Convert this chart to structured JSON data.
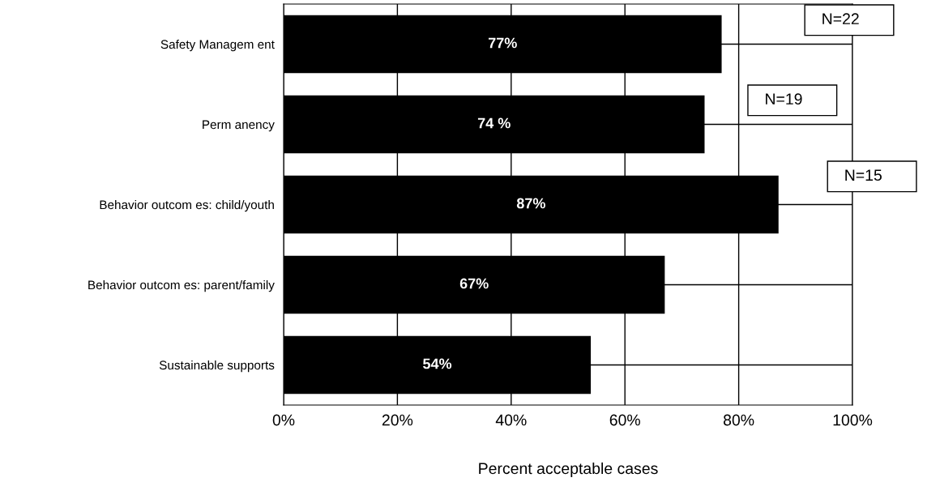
{
  "chart_data": {
    "type": "bar",
    "orientation": "horizontal",
    "categories": [
      "Safety Managem ent",
      "Perm anency",
      "Behavior outcom es: child/youth",
      "Behavior outcom es: parent/family",
      "Sustainable supports"
    ],
    "values": [
      77,
      74,
      87,
      67,
      54
    ],
    "color": "#000000",
    "value_labels": [
      "77%",
      "74 %",
      "87%",
      "67%",
      "54%"
    ],
    "xlim": [
      0,
      100
    ],
    "xticks": [
      {
        "value": 0,
        "label": "0%"
      },
      {
        "value": 20,
        "label": "20%"
      },
      {
        "value": 40,
        "label": "40%"
      },
      {
        "value": 60,
        "label": "60%"
      },
      {
        "value": 80,
        "label": "80%"
      },
      {
        "value": 100,
        "label": "100%"
      }
    ],
    "xlabel": "Percent acceptable cases",
    "annotations": [
      "N=22",
      "N=19",
      "N=15"
    ],
    "grid": true,
    "legend": false
  }
}
